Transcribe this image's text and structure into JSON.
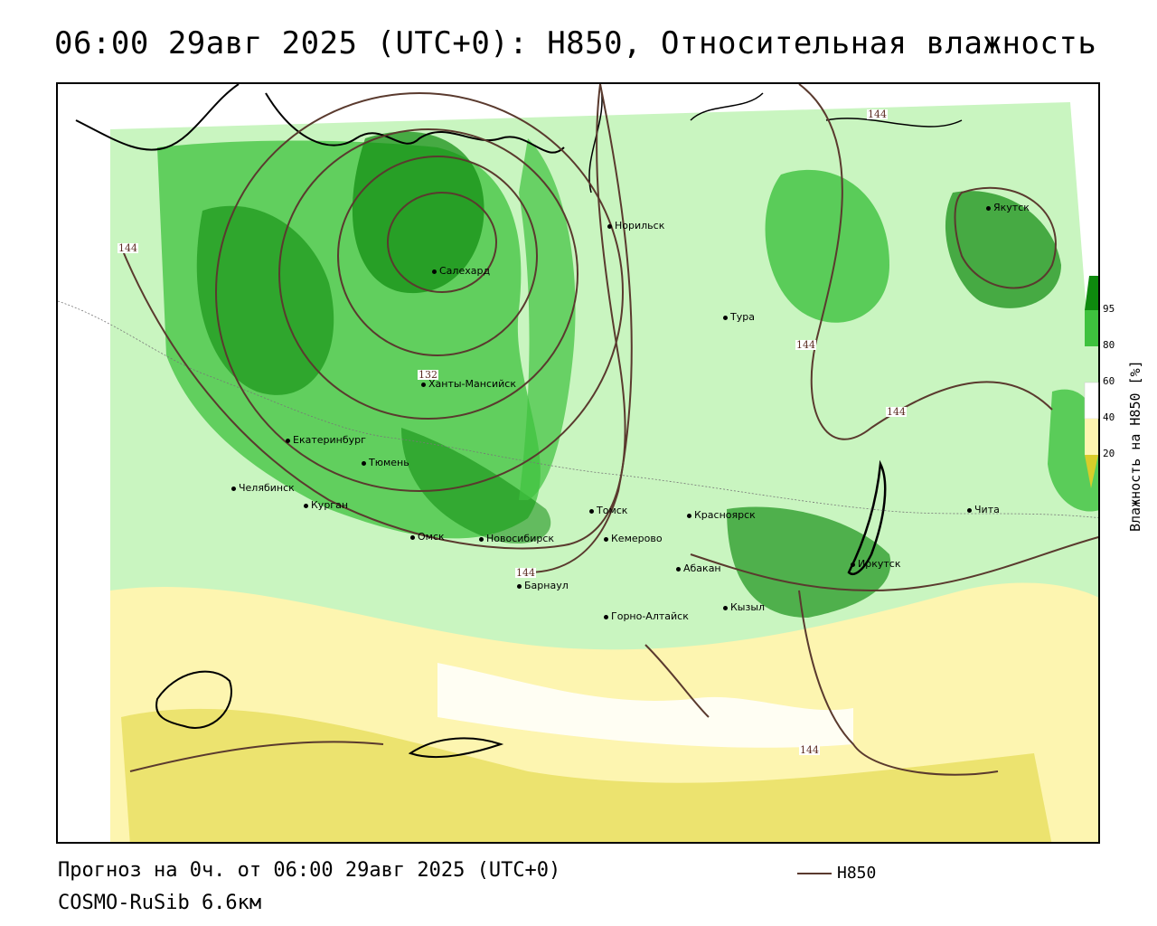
{
  "title": "06:00 29авг 2025 (UTC+0): H850, Относительная влажность",
  "footer": {
    "forecast": "Прогноз на 0ч. от 06:00 29авг 2025 (UTC+0)",
    "model": "COSMO-RuSib 6.6км",
    "contour_legend": "H850"
  },
  "colorbar": {
    "title": "Влажность на H850 [%]",
    "ticks": [
      "95",
      "80",
      "60",
      "40",
      "20"
    ],
    "colors": [
      "#0e8a0e",
      "#3ec23e",
      "#c9f5c0",
      "#ffffff",
      "#fdf5b0",
      "#d8cc2a"
    ]
  },
  "contour_labels": [
    "144",
    "144",
    "132",
    "144",
    "144",
    "144",
    "144"
  ],
  "cities": [
    {
      "name": "Норильск"
    },
    {
      "name": "Якутск"
    },
    {
      "name": "Салехард"
    },
    {
      "name": "Тура"
    },
    {
      "name": "Ханты-Мансийск"
    },
    {
      "name": "Екатеринбург"
    },
    {
      "name": "Тюмень"
    },
    {
      "name": "Челябинск"
    },
    {
      "name": "Курган"
    },
    {
      "name": "Томск"
    },
    {
      "name": "Красноярск"
    },
    {
      "name": "Чита"
    },
    {
      "name": "Омск"
    },
    {
      "name": "Новосибирск"
    },
    {
      "name": "Кемерово"
    },
    {
      "name": "Иркутск"
    },
    {
      "name": "Абакан"
    },
    {
      "name": "Барнаул"
    },
    {
      "name": "Кызыл"
    },
    {
      "name": "Горно-Алтайск"
    }
  ]
}
